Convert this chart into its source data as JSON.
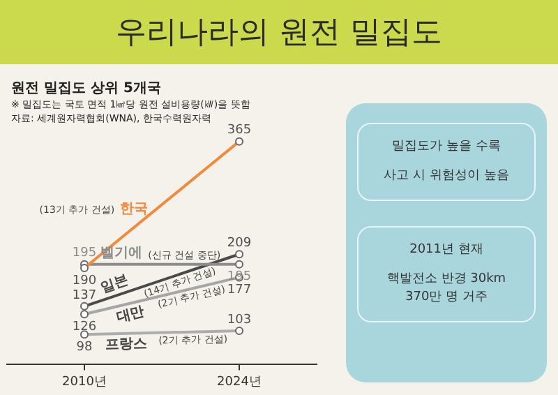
{
  "chart_data": [
    {
      "type": "line",
      "title": "우리나라의 원전 밀집도",
      "subtitle": "원전 밀집도 상위 5개국",
      "categories": [
        "2010년",
        "2024년"
      ],
      "series": [
        {
          "name": "한국",
          "color": "#f08a3c",
          "values": [
            190,
            365
          ]
        },
        {
          "name": "벨기에",
          "color": "#8c8c8c",
          "values": [
            195,
            195
          ]
        },
        {
          "name": "대만",
          "color": "#a6a6a6",
          "values": [
            126,
            177
          ]
        },
        {
          "name": "일본",
          "color": "#4a4a4a",
          "values": [
            137,
            209
          ]
        },
        {
          "name": "프랑스",
          "color": "#adadad",
          "values": [
            98,
            103
          ]
        }
      ],
      "annotations": [
        "※ 밀집도는 국토 면적 1㎢당 원전 설비용량(㎾)을 뜻함",
        "자료: 세계원자력협회(WNA), 한국수력원자력",
        "(13기 추가 건설)",
        "(신규 건설 중단)",
        "(2기 추가 건설)",
        "(14기 추가 건설)",
        "(2기 추가 건설)"
      ],
      "data_labels": true,
      "marker": "circle",
      "legend": false,
      "grid": false,
      "tick_labels": "x"
    },
    {
      "type": "other",
      "annotations": [
        "밀집도가 높을 수록",
        "사고 시 위험성이 높음",
        "2011년 현재",
        "핵발전소 반경 30km",
        "370만 명 거주"
      ]
    }
  ]
}
